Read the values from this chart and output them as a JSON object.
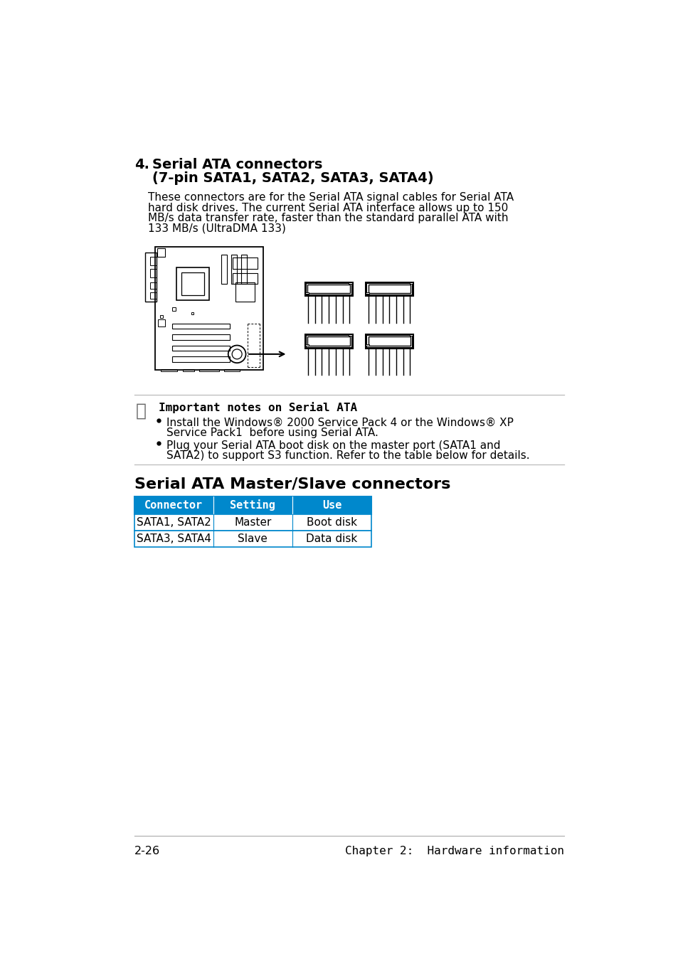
{
  "page_background": "#ffffff",
  "section_number": "4.",
  "section_title_line1": "Serial ATA connectors",
  "section_title_line2": "(7-pin SATA1, SATA2, SATA3, SATA4)",
  "body_text_lines": [
    "These connectors are for the Serial ATA signal cables for Serial ATA",
    "hard disk drives. The current Serial ATA interface allows up to 150",
    "MB/s data transfer rate, faster than the standard parallel ATA with",
    "133 MB/s (UltraDMA 133)"
  ],
  "note_title": "Important notes on Serial ATA",
  "bullet1_lines": [
    "Install the Windows® 2000 Service Pack 4 or the Windows® XP",
    "Service Pack1  before using Serial ATA."
  ],
  "bullet2_lines": [
    "Plug your Serial ATA boot disk on the master port (SATA1 and",
    "SATA2) to support S3 function. Refer to the table below for details."
  ],
  "table_title": "Serial ATA Master/Slave connectors",
  "table_header": [
    "Connector",
    "Setting",
    "Use"
  ],
  "table_rows": [
    [
      "SATA1, SATA2",
      "Master",
      "Boot disk"
    ],
    [
      "SATA3, SATA4",
      "Slave",
      "Data disk"
    ]
  ],
  "table_header_bg": "#0088cc",
  "table_header_color": "#ffffff",
  "table_row_bg": "#ffffff",
  "table_border_color": "#0088cc",
  "footer_left": "2-26",
  "footer_right": "Chapter 2:  Hardware information",
  "title_color": "#000000",
  "text_color": "#000000"
}
